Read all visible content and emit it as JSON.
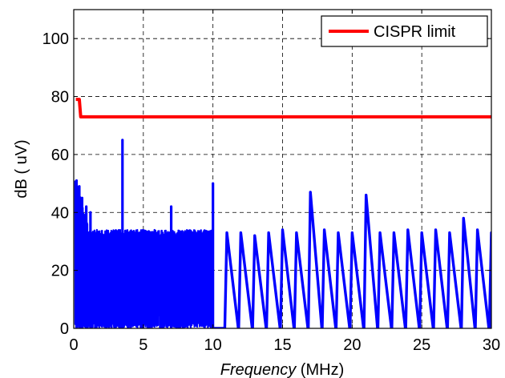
{
  "chart_data": {
    "type": "line",
    "title": "",
    "xlabel": {
      "italic": "Frequency",
      "rest": " (MHz)"
    },
    "ylabel": "dB ( uV)",
    "xlim": [
      0,
      30
    ],
    "ylim": [
      0,
      110
    ],
    "xticks": [
      0,
      5,
      10,
      15,
      20,
      25,
      30
    ],
    "yticks": [
      0,
      20,
      40,
      60,
      80,
      100
    ],
    "grid": true,
    "legend": {
      "position": "top-right",
      "entries": [
        "CISPR limit"
      ]
    },
    "colors": {
      "limit": "#ff0000",
      "spectrum": "#0000ff",
      "grid": "#000000"
    },
    "series": [
      {
        "name": "CISPR limit",
        "x": [
          0.15,
          0.4,
          0.5,
          30
        ],
        "y": [
          79,
          79,
          73,
          73
        ]
      },
      {
        "name": "",
        "dense_band": {
          "x_start": 0.1,
          "x_end": 10.0,
          "envelope_db": 34,
          "floor_db": 0
        },
        "decay": {
          "x_start": 0.15,
          "x_end": 1.0,
          "y_start": 51,
          "y_end": 36
        },
        "peaks": [
          {
            "x": 0.2,
            "y": 51
          },
          {
            "x": 0.4,
            "y": 49
          },
          {
            "x": 0.6,
            "y": 45
          },
          {
            "x": 0.9,
            "y": 42
          },
          {
            "x": 1.2,
            "y": 40
          },
          {
            "x": 3.5,
            "y": 65
          },
          {
            "x": 7.0,
            "y": 42
          },
          {
            "x": 10.0,
            "y": 50
          }
        ],
        "sawtooth": {
          "x": [
            11,
            12,
            13,
            14,
            15,
            16,
            17,
            18,
            19,
            20,
            21,
            22,
            23,
            24,
            25,
            26,
            27,
            28,
            29,
            30
          ],
          "peak_y": [
            33,
            33,
            32,
            33,
            34,
            33,
            47,
            34,
            33,
            33,
            46,
            33,
            33,
            34,
            33,
            34,
            33,
            38,
            34,
            33
          ]
        }
      }
    ]
  }
}
